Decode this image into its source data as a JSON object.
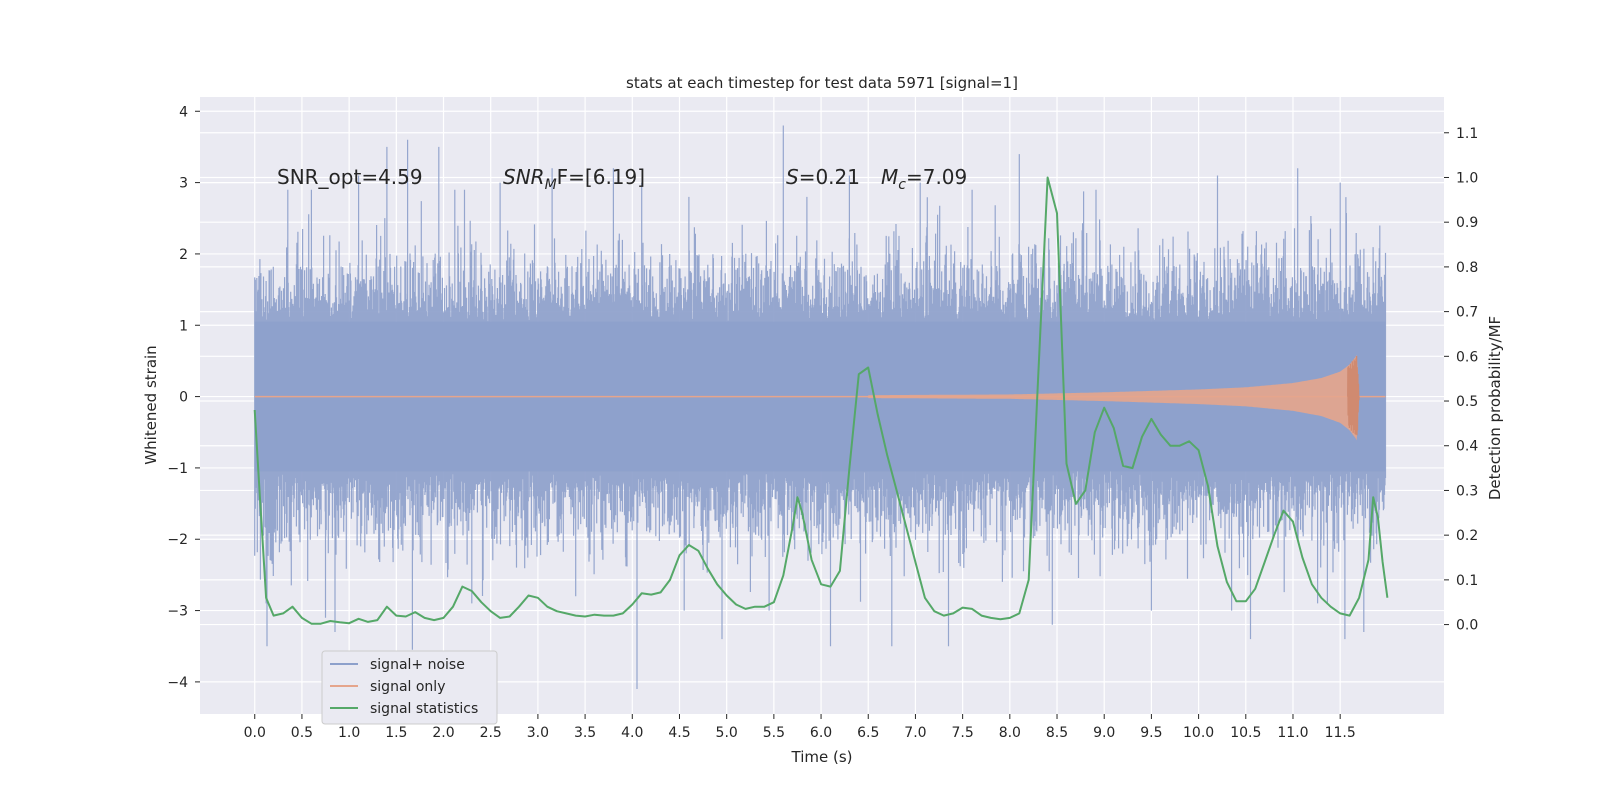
{
  "chart_data": {
    "type": "line",
    "title": "stats at each timestep for test data 5971 [signal=1]",
    "xlabel": "Time (s)",
    "ylabel": "Whitened strain",
    "ylabel_right": "Detection probability/MF",
    "xlim": [
      -0.58,
      12.6
    ],
    "ylim": [
      -4.45,
      4.2
    ],
    "ylim_right": [
      -0.2,
      1.18
    ],
    "x_ticks": [
      "0.0",
      "0.5",
      "1.0",
      "1.5",
      "2.0",
      "2.5",
      "3.0",
      "3.5",
      "4.0",
      "4.5",
      "5.0",
      "5.5",
      "6.0",
      "6.5",
      "7.0",
      "7.5",
      "8.0",
      "8.5",
      "9.0",
      "9.5",
      "10.0",
      "10.5",
      "11.0",
      "11.5"
    ],
    "y_ticks": [
      "4",
      "3",
      "2",
      "1",
      "0",
      "−1",
      "−2",
      "−3",
      "−4"
    ],
    "y_ticks_right": [
      "1.1",
      "1.0",
      "0.9",
      "0.8",
      "0.7",
      "0.6",
      "0.5",
      "0.4",
      "0.3",
      "0.2",
      "0.1",
      "0.0"
    ],
    "grid": true,
    "legend_position": "lower-left",
    "colors": {
      "background": "#eaeaf2",
      "grid": "#ffffff",
      "noise": "#8da0cb",
      "signal": "#e5a58c",
      "stats": "#55a868",
      "text": "#262626"
    },
    "annotations": {
      "snr_opt": "SNR_opt=4.59",
      "snr_mf_prefix": "SNR",
      "snr_mf_sub": "M",
      "snr_mf_suffix": "F=[6.19]",
      "s_var": "S",
      "s_value": "=0.21",
      "mc_var": "M",
      "mc_sub": "c",
      "mc_value": "=7.09"
    },
    "series": [
      {
        "name": "signal+ noise",
        "kind": "noise",
        "t_range": [
          0.0,
          11.98
        ],
        "typical_envelope": [
          -2.3,
          2.3
        ],
        "spikes": [
          {
            "t": 0.12,
            "v": -2.9
          },
          {
            "t": 0.13,
            "v": -3.5
          },
          {
            "t": 0.35,
            "v": 2.9
          },
          {
            "t": 0.6,
            "v": 2.9
          },
          {
            "t": 0.75,
            "v": -3.1
          },
          {
            "t": 0.85,
            "v": -3.3
          },
          {
            "t": 1.1,
            "v": 3.1
          },
          {
            "t": 1.4,
            "v": 3.5
          },
          {
            "t": 1.62,
            "v": 3.6
          },
          {
            "t": 1.67,
            "v": -3.55
          },
          {
            "t": 1.95,
            "v": 3.5
          },
          {
            "t": 2.3,
            "v": -2.9
          },
          {
            "t": 2.6,
            "v": 3.0
          },
          {
            "t": 3.15,
            "v": 3.2
          },
          {
            "t": 3.4,
            "v": -2.8
          },
          {
            "t": 3.8,
            "v": 3.2
          },
          {
            "t": 4.05,
            "v": -4.1
          },
          {
            "t": 4.1,
            "v": 3.0
          },
          {
            "t": 4.55,
            "v": -3.0
          },
          {
            "t": 4.6,
            "v": 2.8
          },
          {
            "t": 4.95,
            "v": -3.4
          },
          {
            "t": 5.45,
            "v": -3.0
          },
          {
            "t": 5.6,
            "v": 3.8
          },
          {
            "t": 5.85,
            "v": 2.8
          },
          {
            "t": 6.1,
            "v": -3.5
          },
          {
            "t": 6.3,
            "v": 3.1
          },
          {
            "t": 6.75,
            "v": -3.5
          },
          {
            "t": 7.05,
            "v": 3.0
          },
          {
            "t": 7.35,
            "v": -3.5
          },
          {
            "t": 7.6,
            "v": 2.9
          },
          {
            "t": 8.1,
            "v": 3.4
          },
          {
            "t": 8.45,
            "v": -3.2
          },
          {
            "t": 9.5,
            "v": -3.0
          },
          {
            "t": 10.2,
            "v": 3.1
          },
          {
            "t": 10.35,
            "v": -3.0
          },
          {
            "t": 10.55,
            "v": -3.4
          },
          {
            "t": 11.05,
            "v": 3.2
          },
          {
            "t": 11.5,
            "v": 3.0
          },
          {
            "t": 11.55,
            "v": -3.4
          },
          {
            "t": 11.75,
            "v": -3.3
          }
        ]
      },
      {
        "name": "signal only",
        "kind": "chirp",
        "t_range": [
          0.0,
          11.98
        ],
        "coalescence_time": 11.7,
        "amplitude_profile": [
          {
            "t": 6.5,
            "v": 0.02
          },
          {
            "t": 8.0,
            "v": 0.03
          },
          {
            "t": 9.0,
            "v": 0.06
          },
          {
            "t": 10.0,
            "v": 0.1
          },
          {
            "t": 10.5,
            "v": 0.13
          },
          {
            "t": 11.0,
            "v": 0.19
          },
          {
            "t": 11.3,
            "v": 0.26
          },
          {
            "t": 11.5,
            "v": 0.35
          },
          {
            "t": 11.6,
            "v": 0.45
          },
          {
            "t": 11.66,
            "v": 0.55
          },
          {
            "t": 11.68,
            "v": 0.6
          },
          {
            "t": 11.7,
            "v": 0.0
          }
        ]
      },
      {
        "name": "signal statistics",
        "kind": "line",
        "axis": "right",
        "points": [
          [
            0.0,
            0.48
          ],
          [
            0.05,
            0.3
          ],
          [
            0.12,
            0.06
          ],
          [
            0.2,
            0.02
          ],
          [
            0.3,
            0.025
          ],
          [
            0.4,
            0.04
          ],
          [
            0.5,
            0.015
          ],
          [
            0.6,
            0.002
          ],
          [
            0.7,
            0.002
          ],
          [
            0.8,
            0.008
          ],
          [
            0.9,
            0.005
          ],
          [
            1.0,
            0.003
          ],
          [
            1.1,
            0.013
          ],
          [
            1.2,
            0.006
          ],
          [
            1.3,
            0.01
          ],
          [
            1.4,
            0.04
          ],
          [
            1.5,
            0.02
          ],
          [
            1.6,
            0.018
          ],
          [
            1.7,
            0.028
          ],
          [
            1.8,
            0.015
          ],
          [
            1.9,
            0.01
          ],
          [
            2.0,
            0.015
          ],
          [
            2.1,
            0.04
          ],
          [
            2.2,
            0.085
          ],
          [
            2.3,
            0.075
          ],
          [
            2.4,
            0.05
          ],
          [
            2.5,
            0.03
          ],
          [
            2.6,
            0.015
          ],
          [
            2.7,
            0.018
          ],
          [
            2.8,
            0.04
          ],
          [
            2.9,
            0.065
          ],
          [
            3.0,
            0.06
          ],
          [
            3.1,
            0.04
          ],
          [
            3.2,
            0.03
          ],
          [
            3.3,
            0.025
          ],
          [
            3.4,
            0.02
          ],
          [
            3.5,
            0.018
          ],
          [
            3.6,
            0.022
          ],
          [
            3.7,
            0.02
          ],
          [
            3.8,
            0.02
          ],
          [
            3.9,
            0.025
          ],
          [
            4.0,
            0.045
          ],
          [
            4.1,
            0.07
          ],
          [
            4.2,
            0.067
          ],
          [
            4.3,
            0.072
          ],
          [
            4.4,
            0.1
          ],
          [
            4.5,
            0.155
          ],
          [
            4.6,
            0.178
          ],
          [
            4.7,
            0.165
          ],
          [
            4.8,
            0.125
          ],
          [
            4.9,
            0.09
          ],
          [
            5.0,
            0.065
          ],
          [
            5.1,
            0.045
          ],
          [
            5.2,
            0.035
          ],
          [
            5.3,
            0.04
          ],
          [
            5.4,
            0.04
          ],
          [
            5.5,
            0.05
          ],
          [
            5.6,
            0.11
          ],
          [
            5.7,
            0.22
          ],
          [
            5.75,
            0.285
          ],
          [
            5.8,
            0.25
          ],
          [
            5.9,
            0.145
          ],
          [
            6.0,
            0.09
          ],
          [
            6.1,
            0.085
          ],
          [
            6.2,
            0.12
          ],
          [
            6.3,
            0.35
          ],
          [
            6.4,
            0.56
          ],
          [
            6.5,
            0.575
          ],
          [
            6.6,
            0.47
          ],
          [
            6.7,
            0.38
          ],
          [
            6.8,
            0.3
          ],
          [
            6.9,
            0.22
          ],
          [
            7.0,
            0.14
          ],
          [
            7.1,
            0.06
          ],
          [
            7.2,
            0.03
          ],
          [
            7.3,
            0.02
          ],
          [
            7.4,
            0.025
          ],
          [
            7.5,
            0.038
          ],
          [
            7.6,
            0.035
          ],
          [
            7.7,
            0.02
          ],
          [
            7.8,
            0.015
          ],
          [
            7.9,
            0.012
          ],
          [
            8.0,
            0.015
          ],
          [
            8.1,
            0.025
          ],
          [
            8.2,
            0.1
          ],
          [
            8.3,
            0.55
          ],
          [
            8.4,
            1.0
          ],
          [
            8.5,
            0.92
          ],
          [
            8.6,
            0.36
          ],
          [
            8.7,
            0.27
          ],
          [
            8.8,
            0.3
          ],
          [
            8.9,
            0.43
          ],
          [
            9.0,
            0.485
          ],
          [
            9.1,
            0.44
          ],
          [
            9.2,
            0.355
          ],
          [
            9.3,
            0.35
          ],
          [
            9.4,
            0.42
          ],
          [
            9.5,
            0.46
          ],
          [
            9.6,
            0.425
          ],
          [
            9.7,
            0.4
          ],
          [
            9.8,
            0.4
          ],
          [
            9.9,
            0.41
          ],
          [
            10.0,
            0.39
          ],
          [
            10.1,
            0.31
          ],
          [
            10.2,
            0.175
          ],
          [
            10.3,
            0.095
          ],
          [
            10.4,
            0.052
          ],
          [
            10.5,
            0.052
          ],
          [
            10.6,
            0.08
          ],
          [
            10.7,
            0.14
          ],
          [
            10.8,
            0.2
          ],
          [
            10.9,
            0.255
          ],
          [
            11.0,
            0.23
          ],
          [
            11.1,
            0.15
          ],
          [
            11.2,
            0.09
          ],
          [
            11.3,
            0.06
          ],
          [
            11.4,
            0.04
          ],
          [
            11.5,
            0.025
          ],
          [
            11.6,
            0.02
          ],
          [
            11.7,
            0.06
          ],
          [
            11.8,
            0.145
          ],
          [
            11.85,
            0.285
          ],
          [
            11.9,
            0.24
          ],
          [
            11.95,
            0.14
          ],
          [
            12.0,
            0.06
          ]
        ]
      }
    ]
  }
}
